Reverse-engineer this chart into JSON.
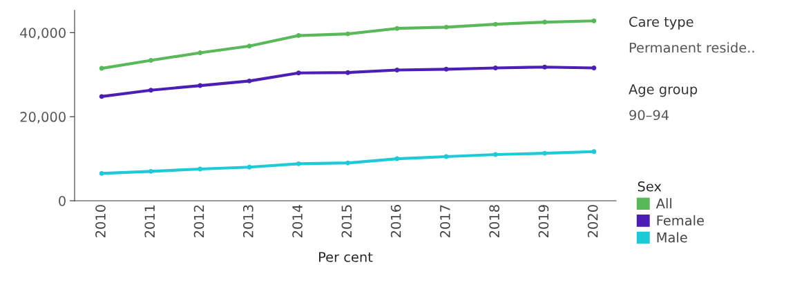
{
  "chart_data": {
    "type": "line",
    "xlabel": "Per cent",
    "categories": [
      "2010",
      "2011",
      "2012",
      "2013",
      "2014",
      "2015",
      "2016",
      "2017",
      "2018",
      "2019",
      "2020"
    ],
    "series": [
      {
        "name": "All",
        "color": "#59b85a",
        "values": [
          31500,
          33400,
          35200,
          36800,
          39300,
          39700,
          41000,
          41300,
          42000,
          42500,
          42800
        ]
      },
      {
        "name": "Female",
        "color": "#4b1fb5",
        "values": [
          24800,
          26300,
          27400,
          28500,
          30400,
          30500,
          31100,
          31300,
          31600,
          31800,
          31600
        ]
      },
      {
        "name": "Male",
        "color": "#1ccad8",
        "values": [
          6500,
          7000,
          7550,
          8000,
          8800,
          9000,
          10000,
          10500,
          11000,
          11300,
          11700
        ]
      }
    ],
    "ylim": [
      0,
      45300
    ],
    "yticks": [
      0,
      {
        "value": 20000,
        "label": "20,000"
      },
      {
        "value": 40000,
        "label": "40,000"
      }
    ],
    "legend": "right",
    "legend_title": "Sex",
    "marker": "circle",
    "line_style": "solid",
    "grid": false,
    "annotations": [
      "Care type",
      "Permanent reside..",
      "Age group",
      "90–94"
    ]
  }
}
